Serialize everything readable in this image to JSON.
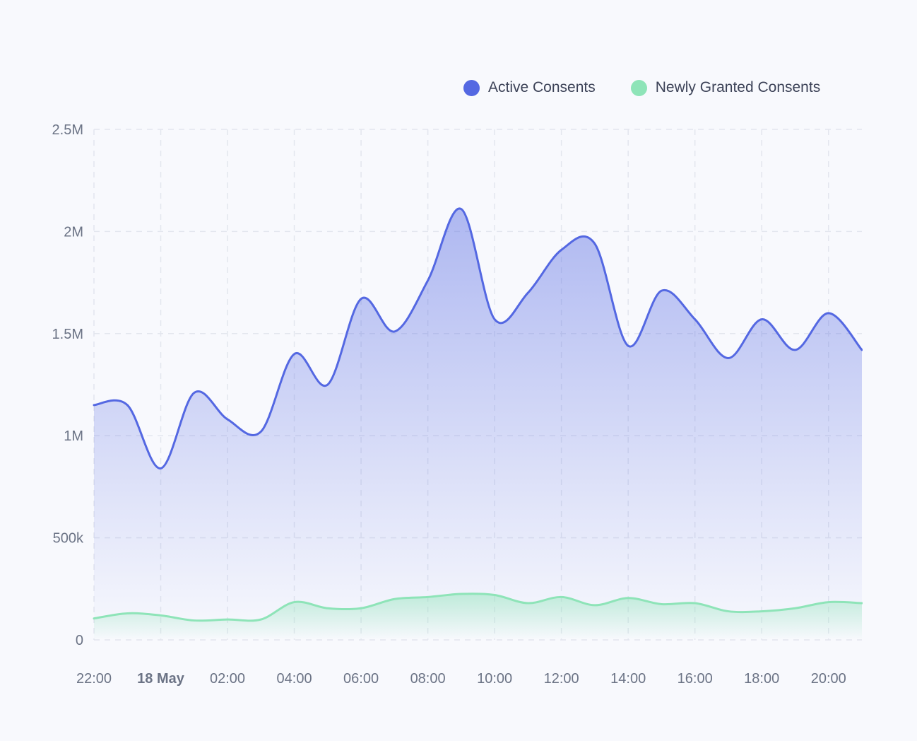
{
  "chart_data": {
    "type": "area",
    "title": "",
    "xlabel": "",
    "ylabel": "",
    "colors": {
      "active": "#5468e2",
      "new": "#8ee4b8",
      "grid": "#e3e6ee",
      "axis_text": "#6b7385",
      "bold_tick": "#6b7385",
      "background": "#f8f9fd"
    },
    "legend": {
      "position": "top-right",
      "items": [
        {
          "label": "Active Consents",
          "color": "#5468e2"
        },
        {
          "label": "Newly Granted Consents",
          "color": "#8ee4b8"
        }
      ]
    },
    "grid": true,
    "y_ticks": [
      {
        "value": 0,
        "label": "0"
      },
      {
        "value": 500000,
        "label": "500k"
      },
      {
        "value": 1000000,
        "label": "1M"
      },
      {
        "value": 1500000,
        "label": "1.5M"
      },
      {
        "value": 2000000,
        "label": "2M"
      },
      {
        "value": 2500000,
        "label": "2.5M"
      }
    ],
    "ylim": [
      0,
      2500000
    ],
    "x_hours": [
      "22:00",
      "23:00",
      "00:00",
      "01:00",
      "02:00",
      "03:00",
      "04:00",
      "05:00",
      "06:00",
      "07:00",
      "08:00",
      "09:00",
      "10:00",
      "11:00",
      "12:00",
      "13:00",
      "14:00",
      "15:00",
      "16:00",
      "17:00",
      "18:00",
      "19:00",
      "20:00",
      "21:00"
    ],
    "x_ticks": [
      {
        "index": 0,
        "label": "22:00",
        "bold": false
      },
      {
        "index": 2,
        "label": "18 May",
        "bold": true
      },
      {
        "index": 4,
        "label": "02:00",
        "bold": false
      },
      {
        "index": 6,
        "label": "04:00",
        "bold": false
      },
      {
        "index": 8,
        "label": "06:00",
        "bold": false
      },
      {
        "index": 10,
        "label": "08:00",
        "bold": false
      },
      {
        "index": 12,
        "label": "10:00",
        "bold": false
      },
      {
        "index": 14,
        "label": "12:00",
        "bold": false
      },
      {
        "index": 16,
        "label": "14:00",
        "bold": false
      },
      {
        "index": 18,
        "label": "16:00",
        "bold": false
      },
      {
        "index": 20,
        "label": "18:00",
        "bold": false
      },
      {
        "index": 22,
        "label": "20:00",
        "bold": false
      }
    ],
    "series": [
      {
        "name": "Active Consents",
        "key": "active",
        "values": [
          1150000,
          1150000,
          840000,
          1210000,
          1080000,
          1020000,
          1400000,
          1250000,
          1670000,
          1510000,
          1760000,
          2110000,
          1570000,
          1700000,
          1910000,
          1940000,
          1440000,
          1710000,
          1570000,
          1380000,
          1570000,
          1420000,
          1600000,
          1420000
        ]
      },
      {
        "name": "Newly Granted Consents",
        "key": "new",
        "values": [
          105000,
          130000,
          120000,
          95000,
          100000,
          100000,
          185000,
          155000,
          155000,
          200000,
          210000,
          225000,
          220000,
          180000,
          210000,
          170000,
          205000,
          175000,
          180000,
          140000,
          140000,
          155000,
          185000,
          180000
        ]
      }
    ]
  }
}
